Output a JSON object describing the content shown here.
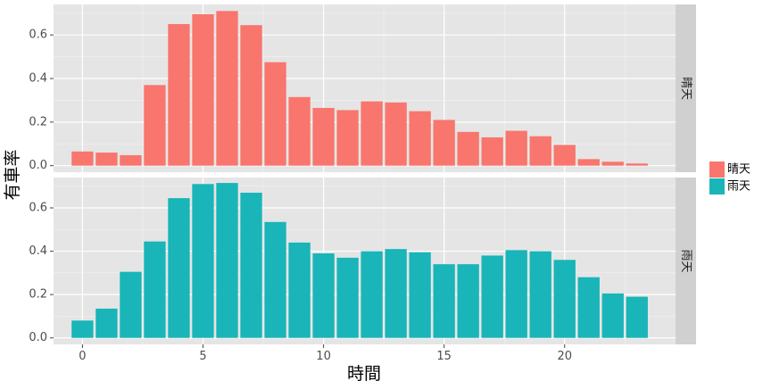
{
  "chart_data": {
    "type": "bar",
    "xlabel": "時間",
    "ylabel": "有車率",
    "x": [
      0,
      1,
      2,
      3,
      4,
      5,
      6,
      7,
      8,
      9,
      10,
      11,
      12,
      13,
      14,
      15,
      16,
      17,
      18,
      19,
      20,
      21,
      22,
      23
    ],
    "xticks": [
      0,
      5,
      10,
      15,
      20
    ],
    "yticks": [
      0.0,
      0.2,
      0.4,
      0.6
    ],
    "ytick_labels": [
      "0.0",
      "0.2",
      "0.4",
      "0.6"
    ],
    "ylim": [
      -0.03,
      0.74
    ],
    "xlim": [
      -1.2,
      24.6
    ],
    "grid": true,
    "legend_position": "right",
    "series": [
      {
        "name": "晴天",
        "color": "#F8766D",
        "values": [
          0.065,
          0.06,
          0.048,
          0.37,
          0.65,
          0.695,
          0.71,
          0.645,
          0.475,
          0.315,
          0.265,
          0.255,
          0.295,
          0.29,
          0.25,
          0.21,
          0.155,
          0.13,
          0.16,
          0.135,
          0.095,
          0.03,
          0.018,
          0.01
        ]
      },
      {
        "name": "雨天",
        "color": "#19B5B8",
        "values": [
          0.08,
          0.135,
          0.305,
          0.445,
          0.645,
          0.71,
          0.715,
          0.67,
          0.535,
          0.44,
          0.39,
          0.37,
          0.4,
          0.41,
          0.395,
          0.34,
          0.34,
          0.38,
          0.405,
          0.4,
          0.36,
          0.28,
          0.205,
          0.19
        ]
      }
    ]
  }
}
